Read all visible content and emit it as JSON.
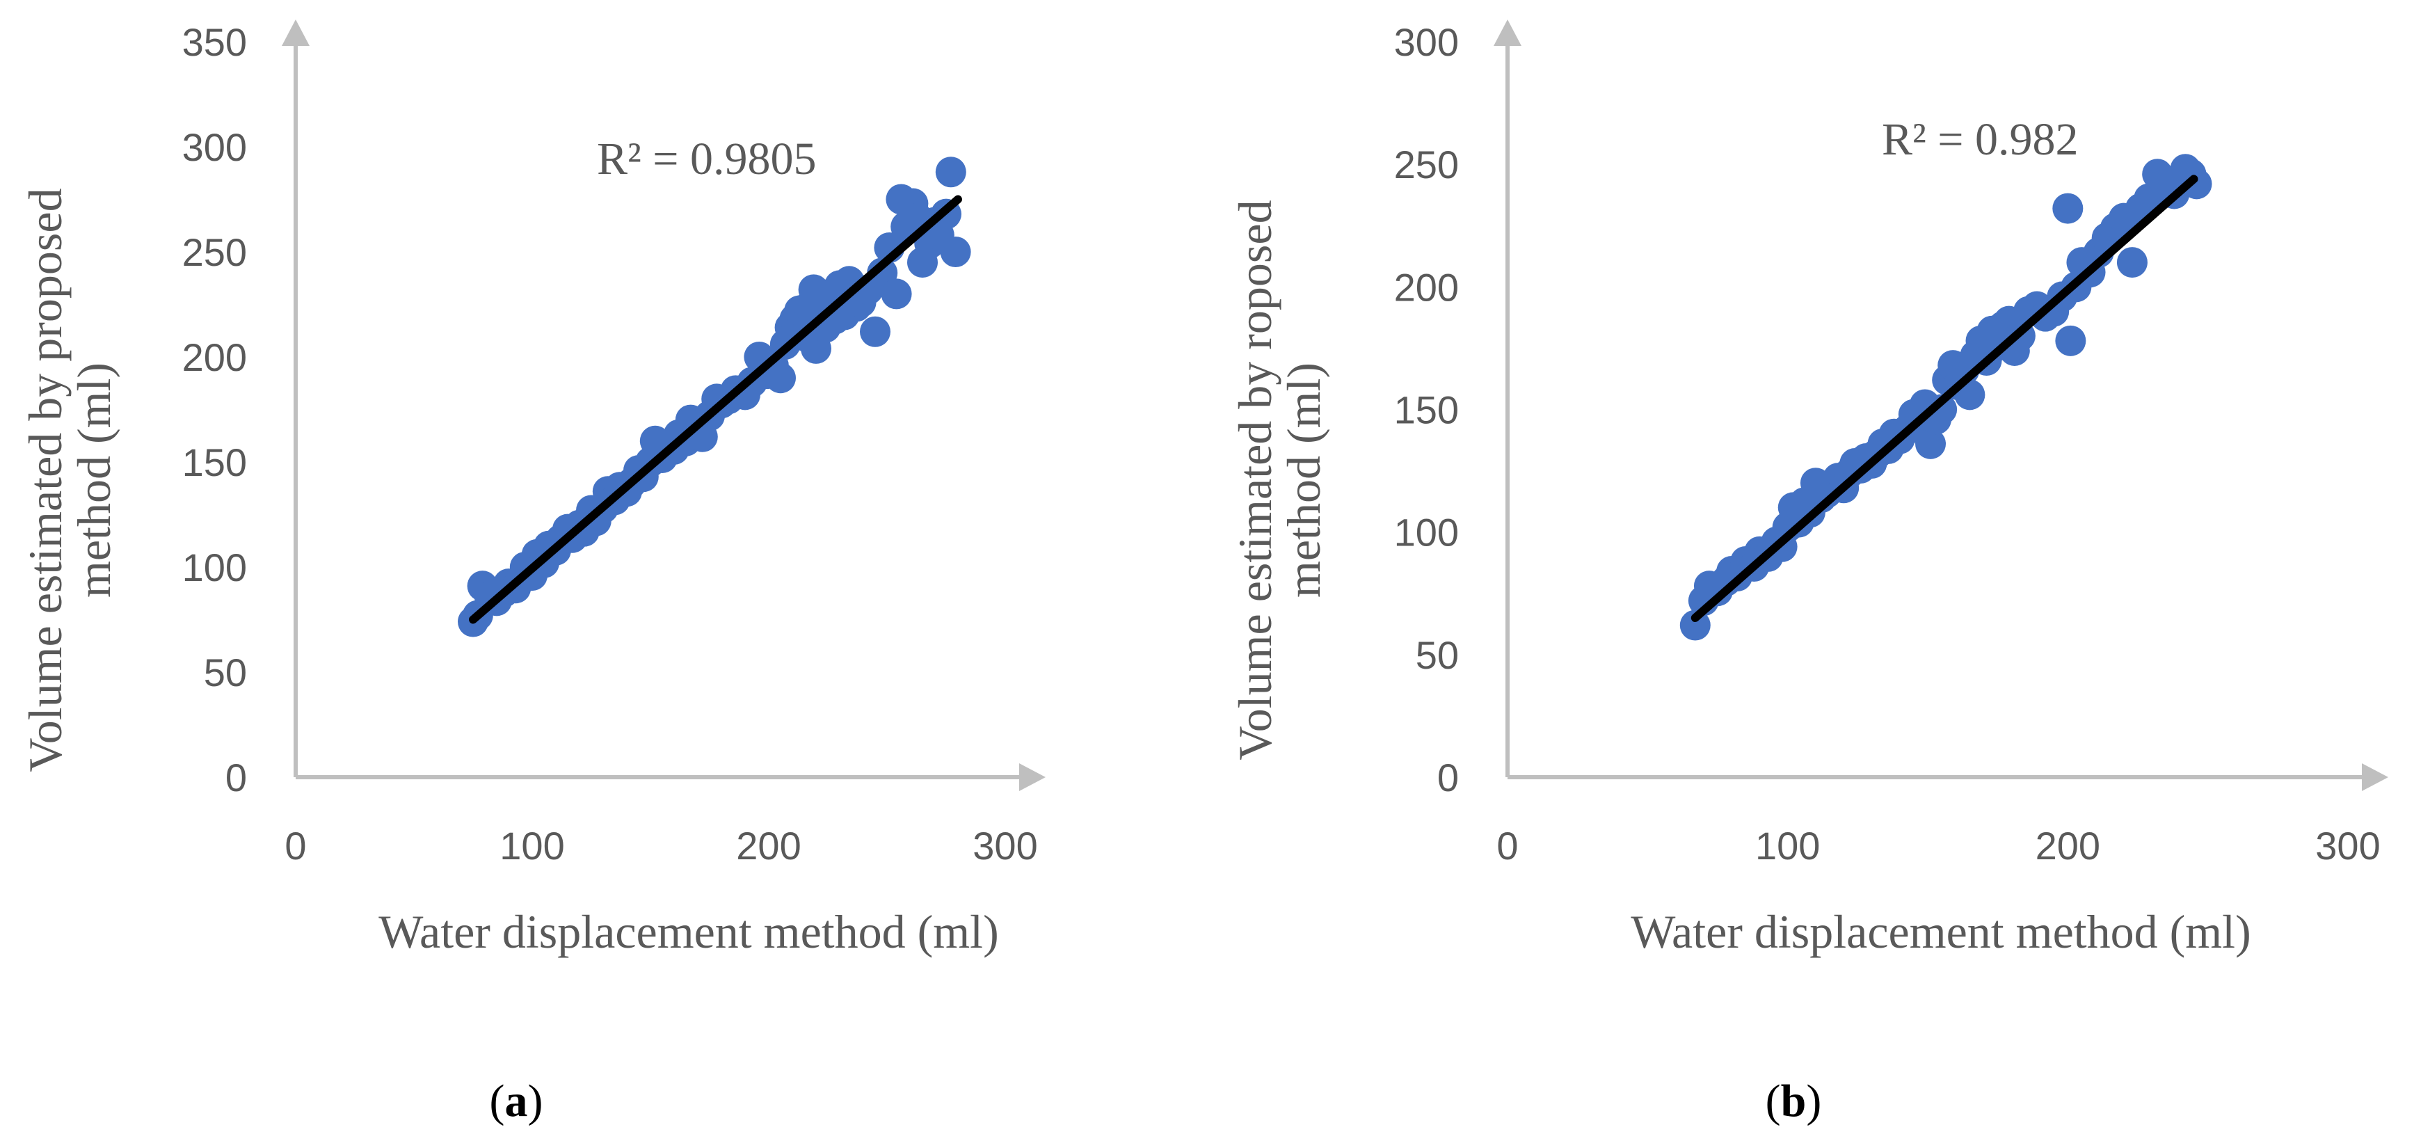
{
  "colors": {
    "axis": "#BFBFBF",
    "point": "#4472C4",
    "trend": "#000000",
    "text": "#595959"
  },
  "chart_data": [
    {
      "type": "scatter",
      "panel_label": "a",
      "xlabel": "Water displacement method (ml)",
      "ylabel_lines": [
        "Volume estimated by proposed",
        "method (ml)"
      ],
      "xlim": [
        0,
        300
      ],
      "ylim": [
        0,
        350
      ],
      "xticks": [
        0,
        100,
        200,
        300
      ],
      "yticks": [
        0,
        50,
        100,
        150,
        200,
        250,
        300,
        350
      ],
      "annotation": "R² = 0.9805",
      "trendline": {
        "x": [
          75,
          280
        ],
        "y": [
          75,
          275
        ]
      },
      "points": [
        [
          75,
          74
        ],
        [
          77,
          77
        ],
        [
          79,
          91
        ],
        [
          82,
          86
        ],
        [
          85,
          84
        ],
        [
          88,
          88
        ],
        [
          90,
          92
        ],
        [
          93,
          90
        ],
        [
          95,
          94
        ],
        [
          97,
          100
        ],
        [
          100,
          96
        ],
        [
          102,
          106
        ],
        [
          105,
          102
        ],
        [
          107,
          110
        ],
        [
          110,
          108
        ],
        [
          112,
          113
        ],
        [
          115,
          118
        ],
        [
          117,
          114
        ],
        [
          120,
          120
        ],
        [
          122,
          117
        ],
        [
          125,
          127
        ],
        [
          127,
          122
        ],
        [
          130,
          128
        ],
        [
          132,
          136
        ],
        [
          135,
          132
        ],
        [
          137,
          138
        ],
        [
          140,
          136
        ],
        [
          142,
          140
        ],
        [
          145,
          146
        ],
        [
          147,
          143
        ],
        [
          150,
          150
        ],
        [
          152,
          160
        ],
        [
          155,
          152
        ],
        [
          157,
          158
        ],
        [
          160,
          156
        ],
        [
          162,
          163
        ],
        [
          165,
          160
        ],
        [
          167,
          170
        ],
        [
          170,
          164
        ],
        [
          172,
          162
        ],
        [
          175,
          172
        ],
        [
          178,
          180
        ],
        [
          180,
          178
        ],
        [
          183,
          180
        ],
        [
          186,
          184
        ],
        [
          190,
          182
        ],
        [
          193,
          188
        ],
        [
          196,
          200
        ],
        [
          199,
          192
        ],
        [
          202,
          196
        ],
        [
          205,
          190
        ],
        [
          207,
          206
        ],
        [
          209,
          214
        ],
        [
          211,
          218
        ],
        [
          213,
          222
        ],
        [
          215,
          210
        ],
        [
          217,
          224
        ],
        [
          219,
          232
        ],
        [
          220,
          204
        ],
        [
          222,
          228
        ],
        [
          224,
          214
        ],
        [
          226,
          230
        ],
        [
          228,
          218
        ],
        [
          230,
          234
        ],
        [
          232,
          220
        ],
        [
          234,
          236
        ],
        [
          237,
          224
        ],
        [
          239,
          226
        ],
        [
          242,
          232
        ],
        [
          245,
          212
        ],
        [
          248,
          240
        ],
        [
          251,
          252
        ],
        [
          254,
          230
        ],
        [
          256,
          275
        ],
        [
          258,
          262
        ],
        [
          261,
          273
        ],
        [
          263,
          266
        ],
        [
          265,
          245
        ],
        [
          268,
          254
        ],
        [
          270,
          264
        ],
        [
          272,
          258
        ],
        [
          275,
          268
        ],
        [
          277,
          288
        ],
        [
          279,
          250
        ]
      ]
    },
    {
      "type": "scatter",
      "panel_label": "b",
      "xlabel": "Water displacement method (ml)",
      "ylabel_lines": [
        "Volume estimated by roposed",
        "method (ml)"
      ],
      "xlim": [
        0,
        300
      ],
      "ylim": [
        0,
        300
      ],
      "xticks": [
        0,
        100,
        200,
        300
      ],
      "yticks": [
        0,
        50,
        100,
        150,
        200,
        250,
        300
      ],
      "annotation": "R² = 0.982",
      "trendline": {
        "x": [
          67,
          245
        ],
        "y": [
          65,
          244
        ]
      },
      "points": [
        [
          67,
          62
        ],
        [
          70,
          72
        ],
        [
          72,
          78
        ],
        [
          75,
          76
        ],
        [
          78,
          80
        ],
        [
          80,
          84
        ],
        [
          82,
          82
        ],
        [
          85,
          88
        ],
        [
          88,
          86
        ],
        [
          90,
          92
        ],
        [
          93,
          90
        ],
        [
          96,
          96
        ],
        [
          98,
          94
        ],
        [
          100,
          102
        ],
        [
          102,
          110
        ],
        [
          104,
          104
        ],
        [
          106,
          112
        ],
        [
          108,
          108
        ],
        [
          110,
          120
        ],
        [
          112,
          114
        ],
        [
          114,
          116
        ],
        [
          116,
          118
        ],
        [
          118,
          122
        ],
        [
          120,
          118
        ],
        [
          122,
          124
        ],
        [
          124,
          128
        ],
        [
          126,
          126
        ],
        [
          128,
          130
        ],
        [
          130,
          128
        ],
        [
          132,
          132
        ],
        [
          134,
          136
        ],
        [
          136,
          134
        ],
        [
          138,
          140
        ],
        [
          140,
          138
        ],
        [
          143,
          142
        ],
        [
          145,
          148
        ],
        [
          147,
          144
        ],
        [
          149,
          152
        ],
        [
          151,
          136
        ],
        [
          153,
          146
        ],
        [
          155,
          150
        ],
        [
          157,
          162
        ],
        [
          159,
          168
        ],
        [
          161,
          160
        ],
        [
          163,
          166
        ],
        [
          165,
          156
        ],
        [
          167,
          172
        ],
        [
          169,
          178
        ],
        [
          171,
          170
        ],
        [
          173,
          182
        ],
        [
          175,
          176
        ],
        [
          177,
          184
        ],
        [
          179,
          186
        ],
        [
          181,
          174
        ],
        [
          183,
          180
        ],
        [
          186,
          190
        ],
        [
          189,
          192
        ],
        [
          192,
          188
        ],
        [
          195,
          190
        ],
        [
          198,
          196
        ],
        [
          200,
          232
        ],
        [
          201,
          178
        ],
        [
          203,
          200
        ],
        [
          205,
          210
        ],
        [
          208,
          206
        ],
        [
          211,
          214
        ],
        [
          214,
          220
        ],
        [
          217,
          224
        ],
        [
          220,
          228
        ],
        [
          223,
          210
        ],
        [
          226,
          232
        ],
        [
          229,
          236
        ],
        [
          232,
          246
        ],
        [
          235,
          240
        ],
        [
          238,
          238
        ],
        [
          240,
          244
        ],
        [
          242,
          248
        ],
        [
          244,
          246
        ],
        [
          246,
          242
        ]
      ]
    }
  ]
}
